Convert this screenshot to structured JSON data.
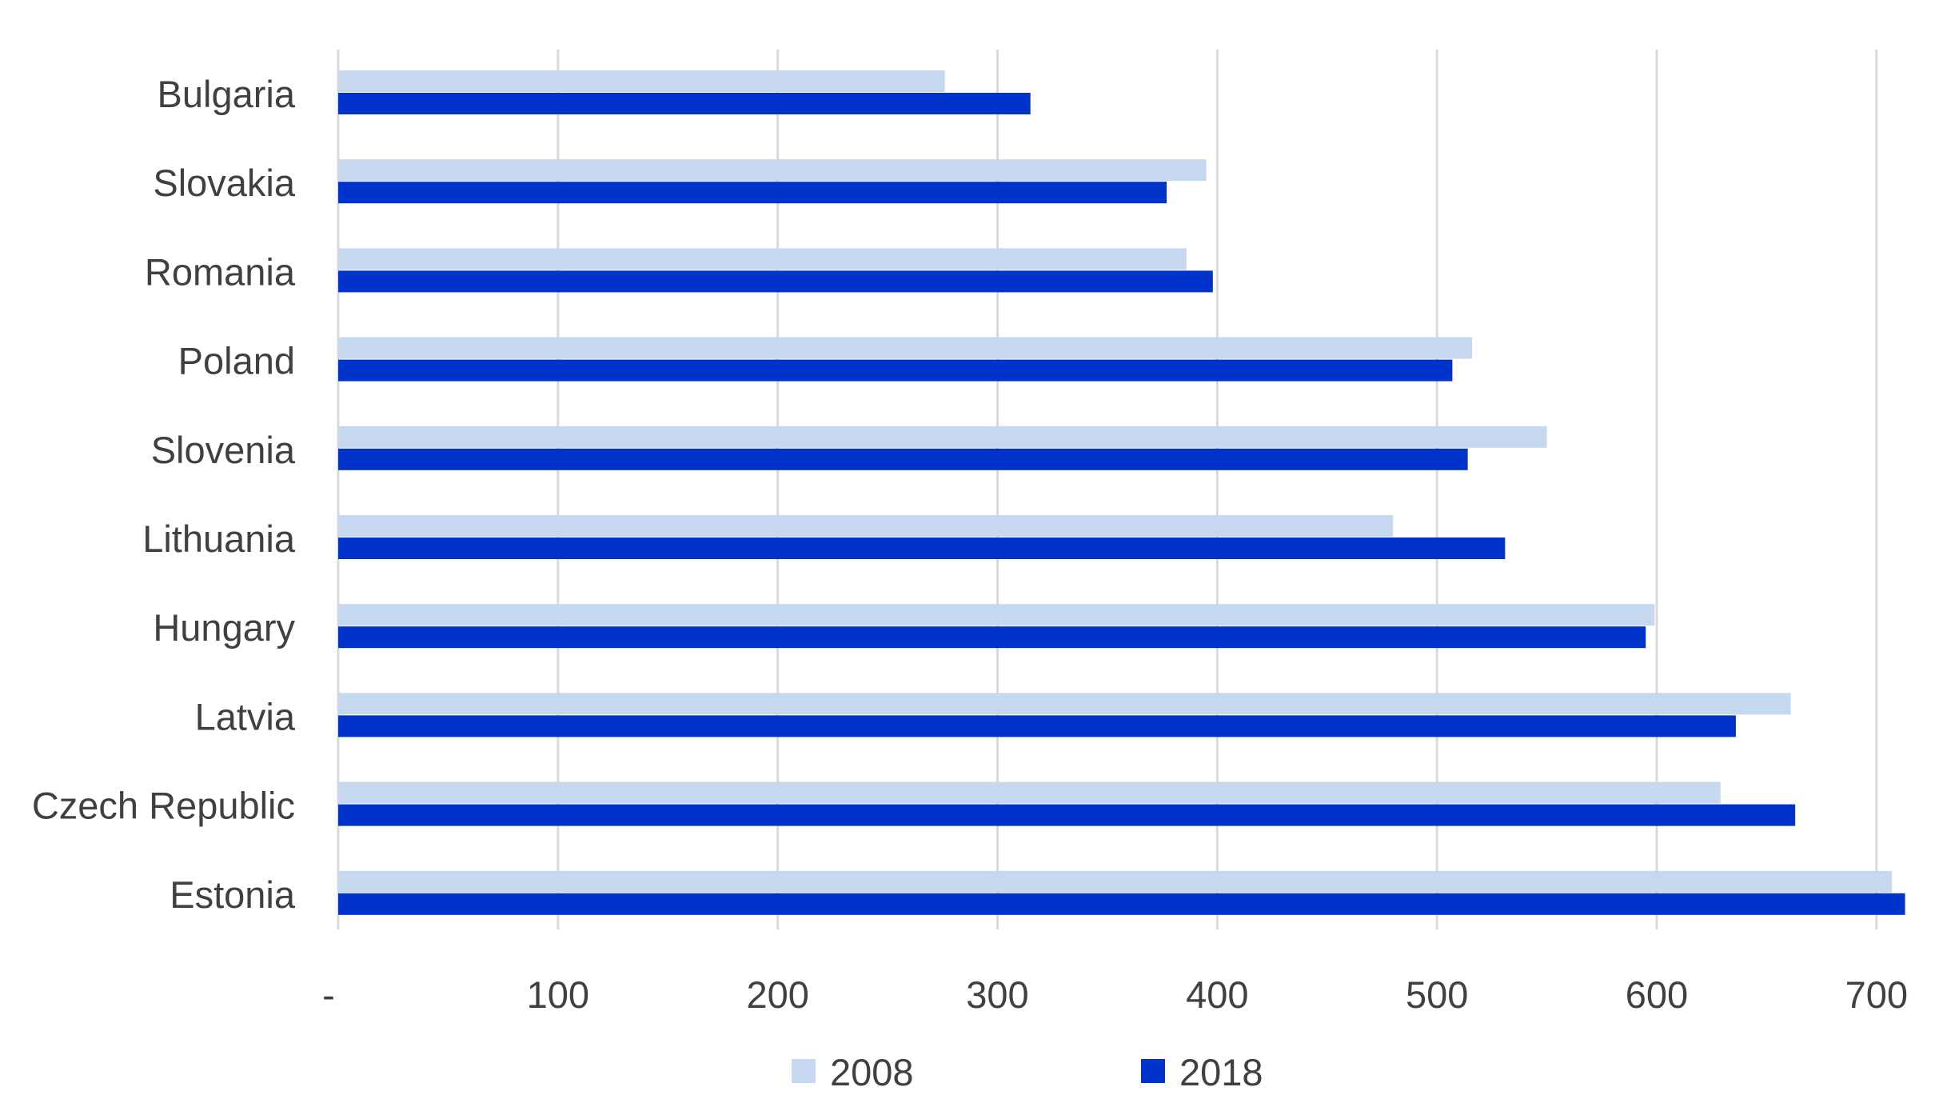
{
  "chart_data": {
    "type": "bar",
    "orientation": "horizontal",
    "categories": [
      "Bulgaria",
      "Slovakia",
      "Romania",
      "Poland",
      "Slovenia",
      "Lithuania",
      "Hungary",
      "Latvia",
      "Czech Republic",
      "Estonia"
    ],
    "series": [
      {
        "name": "2008",
        "color": "#c6d7f0",
        "values": [
          276,
          395,
          386,
          516,
          550,
          480,
          599,
          661,
          629,
          707
        ]
      },
      {
        "name": "2018",
        "color": "#0033cc",
        "values": [
          315,
          377,
          398,
          507,
          514,
          531,
          595,
          636,
          663,
          713
        ]
      }
    ],
    "x_ticks": [
      0,
      100,
      200,
      300,
      400,
      500,
      600,
      700
    ],
    "x_tick_labels": [
      "-",
      "100",
      "200",
      "300",
      "400",
      "500",
      "600",
      "700"
    ],
    "xlim": [
      0,
      713
    ],
    "grid": true,
    "legend_position": "bottom",
    "colors": {
      "gridline": "#d9d9d9",
      "text": "#404040"
    }
  }
}
